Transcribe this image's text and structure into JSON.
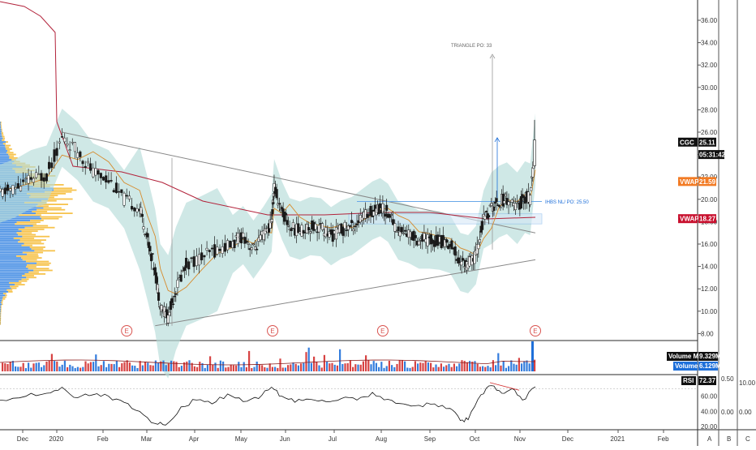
{
  "chart_data": {
    "type": "candlestick",
    "ticker": "CGC",
    "x_labels": [
      "Dec",
      "2020",
      "Feb",
      "Mar",
      "Apr",
      "May",
      "Jun",
      "Jul",
      "Aug",
      "Sep",
      "Oct",
      "Nov",
      "Dec",
      "2021",
      "Feb"
    ],
    "right_axis_buttons": [
      "A",
      "B",
      "C"
    ],
    "price_axis": {
      "ticks": [
        "36.00",
        "34.00",
        "32.00",
        "30.00",
        "28.00",
        "26.00",
        "24.00",
        "22.00",
        "20.00",
        "18.00",
        "16.00",
        "14.00",
        "12.00",
        "10.00",
        "8.00"
      ],
      "ylim": [
        7,
        38
      ]
    },
    "badges": [
      {
        "label": "CGC",
        "value": "25.11",
        "color": "#111111",
        "price": 25.11
      },
      {
        "label": "",
        "value": "05:31:42",
        "color": "#111111",
        "price": 24.0
      },
      {
        "label": "VWAP",
        "value": "21.59",
        "color": "#f27b24",
        "price": 21.59
      },
      {
        "label": "VWAP",
        "value": "18.27",
        "color": "#c8102e",
        "price": 18.27
      }
    ],
    "annotations": {
      "triangle_po": "TRIANGLE PO: 33",
      "ihbs": "IHBS NL/ PO: 25.50",
      "earnings_marker": "E"
    },
    "earnings_marks": [
      0.245,
      0.527,
      0.74,
      1.035
    ],
    "price_path": [
      [
        0.0,
        20.5
      ],
      [
        0.03,
        21.0
      ],
      [
        0.06,
        21.8
      ],
      [
        0.09,
        22.2
      ],
      [
        0.12,
        25.5
      ],
      [
        0.15,
        24.3
      ],
      [
        0.18,
        22.4
      ],
      [
        0.21,
        21.8
      ],
      [
        0.24,
        20.0
      ],
      [
        0.27,
        19.2
      ],
      [
        0.285,
        16.5
      ],
      [
        0.3,
        13.6
      ],
      [
        0.31,
        10.5
      ],
      [
        0.325,
        9.5
      ],
      [
        0.34,
        12.0
      ],
      [
        0.36,
        14.2
      ],
      [
        0.39,
        14.8
      ],
      [
        0.42,
        15.5
      ],
      [
        0.45,
        16.0
      ],
      [
        0.47,
        16.8
      ],
      [
        0.49,
        15.5
      ],
      [
        0.51,
        16.8
      ],
      [
        0.525,
        17.9
      ],
      [
        0.53,
        21.0
      ],
      [
        0.545,
        19.0
      ],
      [
        0.56,
        17.5
      ],
      [
        0.58,
        17.2
      ],
      [
        0.6,
        17.6
      ],
      [
        0.62,
        17.5
      ],
      [
        0.64,
        16.7
      ],
      [
        0.66,
        17.3
      ],
      [
        0.68,
        17.6
      ],
      [
        0.7,
        18.3
      ],
      [
        0.72,
        19.0
      ],
      [
        0.735,
        19.3
      ],
      [
        0.75,
        18.8
      ],
      [
        0.77,
        17.2
      ],
      [
        0.79,
        16.9
      ],
      [
        0.81,
        16.4
      ],
      [
        0.83,
        16.4
      ],
      [
        0.85,
        16.3
      ],
      [
        0.87,
        16.0
      ],
      [
        0.89,
        14.4
      ],
      [
        0.905,
        14.2
      ],
      [
        0.92,
        15.0
      ],
      [
        0.935,
        18.2
      ],
      [
        0.95,
        19.2
      ],
      [
        0.965,
        19.8
      ],
      [
        0.98,
        20.1
      ],
      [
        1.0,
        19.2
      ],
      [
        1.015,
        20.2
      ],
      [
        1.025,
        20.0
      ],
      [
        1.035,
        24.5
      ]
    ],
    "volume_ma": {
      "label": "Volume MA",
      "value": "9.329M"
    },
    "volume": {
      "label": "Volume",
      "value": "6.129M"
    },
    "rsi": {
      "label": "RSI",
      "value": "72.37",
      "ticks": [
        "60.00",
        "40.00",
        "20.00"
      ],
      "ylim": [
        18,
        80
      ],
      "path": [
        [
          0.0,
          55
        ],
        [
          0.05,
          60
        ],
        [
          0.09,
          64
        ],
        [
          0.12,
          72
        ],
        [
          0.15,
          58
        ],
        [
          0.18,
          62
        ],
        [
          0.21,
          60
        ],
        [
          0.24,
          52
        ],
        [
          0.27,
          40
        ],
        [
          0.3,
          24
        ],
        [
          0.32,
          22
        ],
        [
          0.35,
          46
        ],
        [
          0.38,
          55
        ],
        [
          0.41,
          50
        ],
        [
          0.44,
          63
        ],
        [
          0.47,
          53
        ],
        [
          0.5,
          57
        ],
        [
          0.525,
          72
        ],
        [
          0.545,
          60
        ],
        [
          0.57,
          52
        ],
        [
          0.6,
          56
        ],
        [
          0.63,
          53
        ],
        [
          0.66,
          57
        ],
        [
          0.69,
          55
        ],
        [
          0.72,
          65
        ],
        [
          0.75,
          56
        ],
        [
          0.78,
          50
        ],
        [
          0.81,
          48
        ],
        [
          0.84,
          50
        ],
        [
          0.87,
          44
        ],
        [
          0.89,
          28
        ],
        [
          0.905,
          29
        ],
        [
          0.93,
          62
        ],
        [
          0.95,
          74
        ],
        [
          0.97,
          64
        ],
        [
          0.99,
          70
        ],
        [
          1.01,
          55
        ],
        [
          1.035,
          72.37
        ]
      ]
    },
    "oscillator2": {
      "ticks": [
        "0.50",
        "0.00"
      ]
    },
    "oscillator3": {
      "ticks": [
        "10.00",
        "0.00"
      ]
    }
  }
}
